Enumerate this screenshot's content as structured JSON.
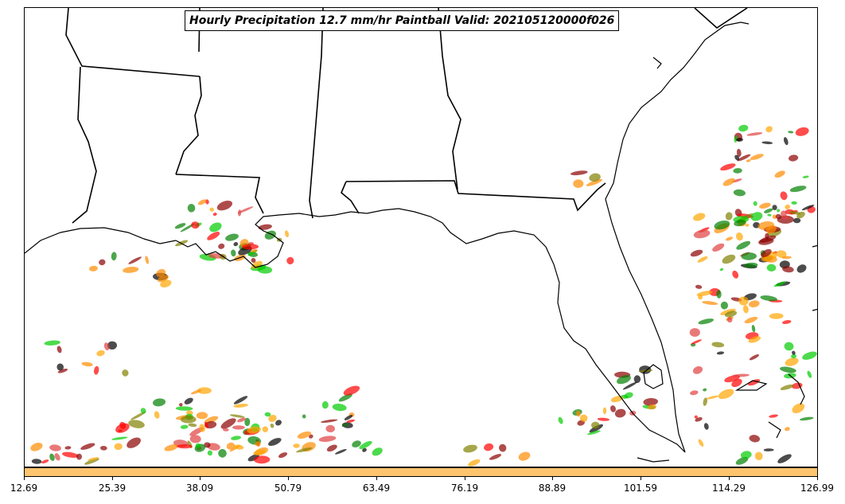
{
  "title": "Hourly Precipitation 12.7 mm/hr Paintball Valid: 202105120000f026",
  "colorbar": {
    "color": "#ffc46e",
    "ticks": [
      "12.69",
      "25.39",
      "38.09",
      "50.79",
      "63.49",
      "76.19",
      "88.89",
      "101.59",
      "114.29",
      "126.99"
    ]
  },
  "paintball_colors": [
    "#ff0000",
    "#00cc00",
    "#008000",
    "#808000",
    "#ff8c00",
    "#8b0000",
    "#000000",
    "#ffa500",
    "#e04040"
  ]
}
